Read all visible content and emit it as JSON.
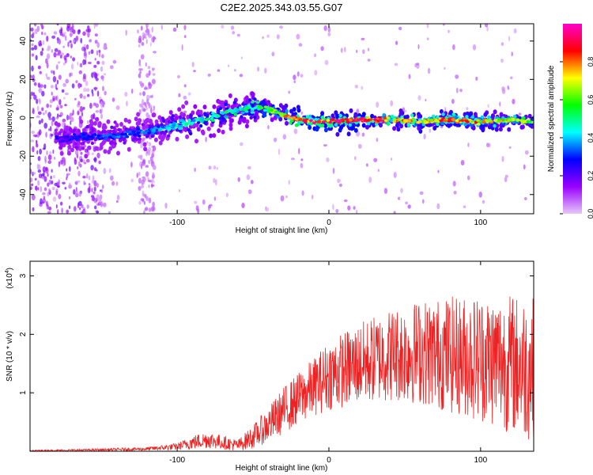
{
  "figure_title": "C2E2.2025.343.03.55.G07",
  "chart_data": [
    {
      "type": "heatmap",
      "title": "C2E2.2025.343.03.55.G07",
      "xlabel": "Height of straight line (km)",
      "ylabel": "Frequency (Hz)",
      "xlim": [
        -197,
        135
      ],
      "ylim": [
        -50,
        49
      ],
      "x_ticks": [
        -100,
        0,
        100
      ],
      "x_tick_labels": [
        "-100",
        "0",
        "100"
      ],
      "y_ticks": [
        -40,
        -20,
        0,
        20,
        40
      ],
      "y_tick_labels": [
        "-40",
        "-20",
        "0",
        "20",
        "40"
      ],
      "colorbar": {
        "label": "Normalized spectral amplitude",
        "range": [
          0,
          1
        ],
        "ticks": [
          0.0,
          0.2,
          0.4,
          0.6,
          0.8
        ],
        "tick_labels": [
          "0.0",
          "0.2",
          "0.4",
          "0.6",
          "0.8"
        ],
        "colors": [
          "#e8c8f8",
          "#9900ff",
          "#0000ff",
          "#00ffff",
          "#00ff00",
          "#ffff00",
          "#ff0000",
          "#ff00cc"
        ]
      },
      "ridge": {
        "x": [
          -180,
          -160,
          -140,
          -120,
          -100,
          -80,
          -60,
          -45,
          -35,
          -25,
          -10,
          0,
          20,
          40,
          60,
          80,
          100,
          120,
          135
        ],
        "center_hz": [
          -11,
          -10,
          -9,
          -7,
          -4,
          0,
          4,
          6,
          3,
          0,
          -2,
          -2,
          -1,
          -1,
          -2,
          -1,
          -2,
          -1,
          -2
        ],
        "amplitude": [
          0.25,
          0.3,
          0.35,
          0.35,
          0.45,
          0.5,
          0.5,
          0.55,
          0.65,
          0.9,
          0.95,
          0.95,
          0.9,
          0.85,
          0.8,
          0.85,
          0.8,
          0.7,
          0.65
        ]
      }
    },
    {
      "type": "line",
      "xlabel": "Height of straight line (km)",
      "ylabel": "SNR (10 * v/v)",
      "y_multiplier_label": "(x10",
      "y_multiplier_exp": "4",
      "xlim": [
        -197,
        135
      ],
      "ylim": [
        0,
        3.25
      ],
      "x_ticks": [
        -100,
        0,
        100
      ],
      "x_tick_labels": [
        "-100",
        "0",
        "100"
      ],
      "y_ticks": [
        1,
        2,
        3
      ],
      "y_tick_labels": [
        "1",
        "2",
        "3"
      ],
      "series": [
        {
          "name": "SNR",
          "color": "#ee2222",
          "envelope_x": [
            -197,
            -160,
            -120,
            -100,
            -90,
            -80,
            -70,
            -60,
            -50,
            -40,
            -30,
            -20,
            -10,
            0,
            20,
            40,
            60,
            80,
            100,
            120,
            135
          ],
          "envelope_mean": [
            0.01,
            0.02,
            0.04,
            0.08,
            0.15,
            0.2,
            0.15,
            0.1,
            0.25,
            0.45,
            0.7,
            0.9,
            1.1,
            1.3,
            1.5,
            1.65,
            1.7,
            1.65,
            1.6,
            1.5,
            1.4
          ],
          "envelope_spread": [
            0.01,
            0.02,
            0.03,
            0.06,
            0.12,
            0.15,
            0.12,
            0.1,
            0.2,
            0.3,
            0.4,
            0.45,
            0.5,
            0.6,
            0.7,
            0.8,
            0.9,
            1.0,
            1.1,
            1.2,
            1.25
          ]
        }
      ]
    }
  ]
}
